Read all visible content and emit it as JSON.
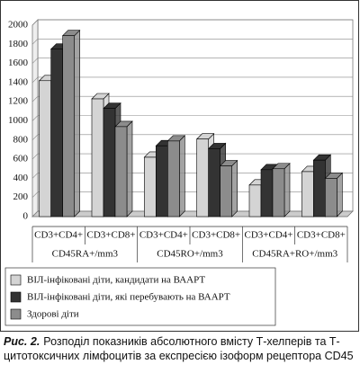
{
  "chart_data": {
    "type": "bar3d",
    "categories": [
      "CD3+CD4+",
      "CD3+CD8+",
      "CD3+CD4+",
      "CD3+CD8+",
      "CD3+CD4+",
      "CD3+CD8+"
    ],
    "groups": [
      "CD45RA+/mm3",
      "CD45RO+/mm3",
      "CD45RA+RO+/mm3"
    ],
    "series": [
      {
        "name": "ВІЛ-інфіковані діти, кандидати на ВААРТ",
        "color": "#d4d4d4",
        "values": [
          1420,
          1230,
          620,
          810,
          330,
          470
        ]
      },
      {
        "name": "ВІЛ-інфіковані діти, які перебувають на ВААРТ",
        "color": "#333333",
        "values": [
          1750,
          1130,
          740,
          710,
          490,
          590
        ]
      },
      {
        "name": "Здорові діти",
        "color": "#8c8c8c",
        "values": [
          1890,
          940,
          790,
          530,
          500,
          400
        ]
      }
    ],
    "ylim": [
      0,
      2000
    ],
    "yticks": [
      0,
      200,
      400,
      600,
      800,
      1000,
      1200,
      1400,
      1600,
      1800,
      2000
    ],
    "grid": true
  },
  "caption": {
    "label": "Рис. 2.",
    "text": "Розподіл показників абсолютного вмісту Т-хелперів та Т-цитотоксичних лімфоцитів за експресією ізоформ рецептора CD45"
  }
}
